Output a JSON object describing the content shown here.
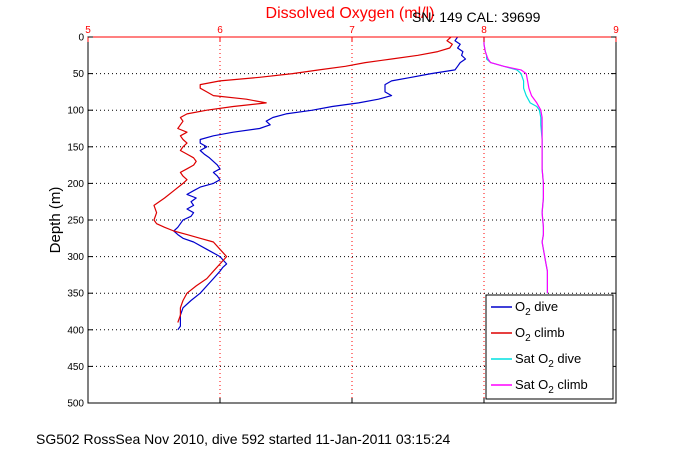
{
  "chart_data": {
    "type": "line",
    "title": "Dissolved Oxygen (ml/l)",
    "annotation": "SN: 149  CAL: 39699",
    "footer": "SG502 RossSea Nov 2010, dive 592 started 11-Jan-2011 03:15:24",
    "ylabel": "Depth (m)",
    "xlabel": "",
    "xlim": [
      5,
      9
    ],
    "ylim": [
      0,
      500
    ],
    "y_reversed": true,
    "x_axis_position": "top",
    "x_ticks": [
      5,
      6,
      7,
      8,
      9
    ],
    "y_ticks": [
      0,
      50,
      100,
      150,
      200,
      250,
      300,
      350,
      400,
      450,
      500
    ],
    "grid": true,
    "legend_position": "bottom-right",
    "colors": {
      "axis": "#ff0000",
      "o2_dive": "#0000cc",
      "o2_climb": "#dd0000",
      "sat_dive": "#00e0e0",
      "sat_climb": "#ff00ff"
    },
    "series": [
      {
        "name": "O2 dive",
        "legend_base": "O",
        "legend_sub": "2",
        "legend_suffix": " dive",
        "color": "#0000cc",
        "x": [
          7.8,
          7.78,
          7.82,
          7.8,
          7.84,
          7.83,
          7.86,
          7.82,
          7.8,
          7.78,
          7.6,
          7.45,
          7.3,
          7.25,
          7.25,
          7.25,
          7.3,
          7.2,
          7.05,
          6.85,
          6.7,
          6.5,
          6.4,
          6.35,
          6.38,
          6.3,
          6.1,
          5.95,
          5.85,
          5.85,
          5.9,
          5.85,
          5.88,
          5.92,
          5.95,
          5.98,
          6.0,
          5.95,
          5.98,
          6.0,
          5.95,
          5.85,
          5.8,
          5.75,
          5.82,
          5.78,
          5.8,
          5.75,
          5.8,
          5.78,
          5.72,
          5.7,
          5.68,
          5.65,
          5.68,
          5.72,
          5.8,
          5.9,
          6.0,
          6.05,
          6.02,
          6.0,
          5.95,
          5.9,
          5.85,
          5.78,
          5.72,
          5.7,
          5.7,
          5.7,
          5.68
        ],
        "y": [
          0,
          5,
          10,
          15,
          20,
          25,
          30,
          35,
          40,
          45,
          50,
          55,
          60,
          65,
          70,
          75,
          80,
          85,
          90,
          95,
          100,
          105,
          110,
          115,
          120,
          125,
          130,
          135,
          140,
          145,
          150,
          155,
          160,
          165,
          170,
          175,
          180,
          185,
          190,
          195,
          200,
          205,
          210,
          215,
          220,
          225,
          230,
          235,
          240,
          245,
          250,
          255,
          260,
          265,
          270,
          275,
          280,
          290,
          300,
          310,
          315,
          320,
          330,
          340,
          350,
          360,
          370,
          380,
          390,
          395,
          400
        ]
      },
      {
        "name": "O2 climb",
        "legend_base": "O",
        "legend_sub": "2",
        "legend_suffix": " climb",
        "color": "#dd0000",
        "x": [
          7.75,
          7.72,
          7.76,
          7.74,
          7.65,
          7.5,
          7.3,
          7.1,
          6.95,
          6.75,
          6.55,
          6.3,
          6.0,
          5.85,
          5.85,
          5.9,
          5.95,
          6.2,
          6.35,
          6.1,
          5.9,
          5.75,
          5.7,
          5.72,
          5.7,
          5.68,
          5.75,
          5.7,
          5.72,
          5.75,
          5.72,
          5.7,
          5.75,
          5.8,
          5.82,
          5.8,
          5.75,
          5.7,
          5.72,
          5.75,
          5.72,
          5.65,
          5.58,
          5.5,
          5.52,
          5.5,
          5.52,
          5.58,
          5.65,
          5.75,
          5.85,
          5.95,
          6.0,
          6.05,
          6.0,
          5.95,
          5.9,
          5.82,
          5.75,
          5.72,
          5.7,
          5.7,
          5.68
        ],
        "y": [
          0,
          5,
          10,
          15,
          20,
          25,
          30,
          35,
          40,
          45,
          50,
          55,
          60,
          65,
          70,
          75,
          80,
          85,
          90,
          95,
          100,
          105,
          110,
          115,
          120,
          125,
          130,
          135,
          140,
          145,
          150,
          155,
          160,
          165,
          170,
          175,
          180,
          185,
          190,
          195,
          200,
          210,
          220,
          230,
          240,
          250,
          255,
          260,
          265,
          270,
          275,
          280,
          290,
          300,
          310,
          320,
          330,
          340,
          350,
          360,
          370,
          380,
          390
        ]
      },
      {
        "name": "Sat O2 dive",
        "legend_base": "Sat O",
        "legend_sub": "2",
        "legend_suffix": " dive",
        "color": "#00e0e0",
        "x": [
          8.0,
          8.0,
          8.01,
          8.02,
          8.02,
          8.05,
          8.15,
          8.25,
          8.28,
          8.3,
          8.3,
          8.32,
          8.35,
          8.4,
          8.42,
          8.43,
          8.43,
          8.44,
          8.44,
          8.44,
          8.45,
          8.45,
          8.44,
          8.45,
          8.45,
          8.44,
          8.45,
          8.46,
          8.47,
          8.48,
          8.48,
          8.48,
          8.48
        ],
        "y": [
          0,
          10,
          20,
          25,
          30,
          35,
          40,
          45,
          50,
          60,
          70,
          80,
          90,
          95,
          100,
          110,
          120,
          140,
          160,
          180,
          200,
          220,
          240,
          260,
          270,
          280,
          290,
          300,
          310,
          320,
          330,
          340,
          350
        ]
      },
      {
        "name": "Sat O2 climb",
        "legend_base": "Sat O",
        "legend_sub": "2",
        "legend_suffix": " climb",
        "color": "#ff00ff",
        "x": [
          8.0,
          8.0,
          8.01,
          8.02,
          8.03,
          8.05,
          8.15,
          8.28,
          8.32,
          8.33,
          8.34,
          8.36,
          8.4,
          8.43,
          8.44,
          8.44,
          8.44,
          8.44,
          8.44,
          8.45,
          8.45,
          8.44,
          8.45,
          8.45,
          8.44,
          8.45,
          8.46,
          8.47,
          8.48,
          8.48,
          8.48,
          8.48
        ],
        "y": [
          0,
          10,
          20,
          25,
          30,
          35,
          40,
          45,
          50,
          60,
          70,
          80,
          90,
          100,
          110,
          120,
          140,
          160,
          180,
          200,
          220,
          240,
          260,
          270,
          280,
          290,
          300,
          310,
          320,
          330,
          340,
          350
        ]
      }
    ]
  }
}
